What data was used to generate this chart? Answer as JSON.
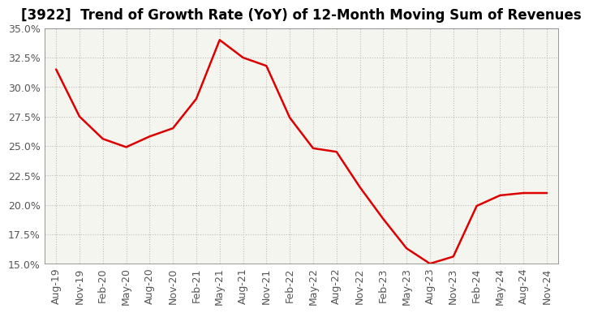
{
  "title": "[3922]  Trend of Growth Rate (YoY) of 12-Month Moving Sum of Revenues",
  "x_labels": [
    "Aug-19",
    "Nov-19",
    "Feb-20",
    "May-20",
    "Aug-20",
    "Nov-20",
    "Feb-21",
    "May-21",
    "Aug-21",
    "Nov-21",
    "Feb-22",
    "May-22",
    "Aug-22",
    "Nov-22",
    "Feb-23",
    "May-23",
    "Aug-23",
    "Nov-23",
    "Feb-24",
    "May-24",
    "Aug-24",
    "Nov-24"
  ],
  "y_values": [
    0.315,
    0.275,
    0.256,
    0.249,
    0.258,
    0.265,
    0.29,
    0.34,
    0.325,
    0.318,
    0.274,
    0.248,
    0.245,
    0.215,
    0.188,
    0.163,
    0.15,
    0.156,
    0.199,
    0.208,
    0.21,
    0.21
  ],
  "line_color": "#dd0000",
  "background_color": "#ffffff",
  "plot_bg_color": "#f5f5f0",
  "grid_color": "#bbbbbb",
  "ylim": [
    0.15,
    0.35
  ],
  "yticks": [
    0.15,
    0.175,
    0.2,
    0.225,
    0.25,
    0.275,
    0.3,
    0.325,
    0.35
  ],
  "title_fontsize": 12,
  "tick_fontsize": 9,
  "tick_color": "#555555"
}
